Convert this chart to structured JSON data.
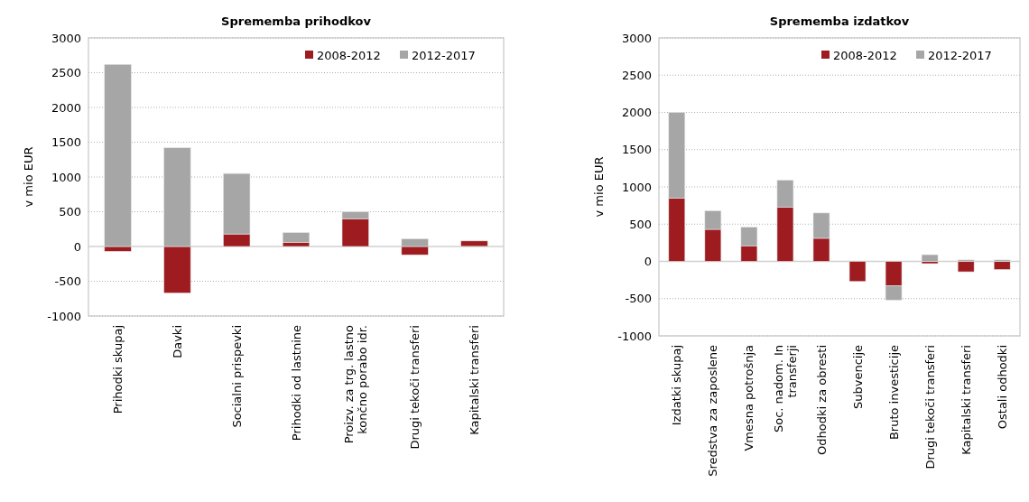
{
  "chart_data": [
    {
      "type": "bar",
      "title": "Sprememba prihodkov",
      "ylabel": "v mio EUR",
      "stacked": true,
      "grid": "y",
      "legend": "top right",
      "categories": [
        "Prihodki skupaj",
        "Davki",
        "Socialni prispevki",
        "Prihodki od lastnine",
        "Proizv. za trg. lastno končno porabo idr.",
        "Drugi tekoči transferi",
        "Kapitalski transferi"
      ],
      "ylim": [
        -1000,
        3000
      ],
      "yticks": [
        -1000,
        -500,
        0,
        500,
        1000,
        1500,
        2000,
        2500,
        3000
      ],
      "series": [
        {
          "name": "2008-2012",
          "color": "#9e1b20",
          "values": [
            -70,
            -670,
            180,
            60,
            400,
            -120,
            80
          ]
        },
        {
          "name": "2012-2017",
          "color": "#a6a6a6",
          "values": [
            2620,
            1420,
            870,
            140,
            100,
            110,
            -10
          ]
        }
      ]
    },
    {
      "type": "bar",
      "title": "Sprememba izdatkov",
      "ylabel": "v mio EUR",
      "stacked": true,
      "grid": "y",
      "legend": "top right",
      "categories": [
        "Izdatki skupaj",
        "Sredstva za zaposlene",
        "Vmesna potrošnja",
        "Soc. nadom. In transferji",
        "Odhodki za obresti",
        "Subvencije",
        "Bruto investicije",
        "Drugi tekoči transferi",
        "Kapitalski transferi",
        "Ostali odhodki"
      ],
      "ylim": [
        -1000,
        3000
      ],
      "yticks": [
        -1000,
        -500,
        0,
        500,
        1000,
        1500,
        2000,
        2500,
        3000
      ],
      "series": [
        {
          "name": "2008-2012",
          "color": "#9e1b20",
          "values": [
            850,
            430,
            210,
            730,
            310,
            -270,
            -330,
            -30,
            -140,
            -110
          ]
        },
        {
          "name": "2012-2017",
          "color": "#a6a6a6",
          "values": [
            1150,
            250,
            250,
            360,
            340,
            0,
            -190,
            90,
            20,
            20
          ]
        }
      ]
    }
  ]
}
